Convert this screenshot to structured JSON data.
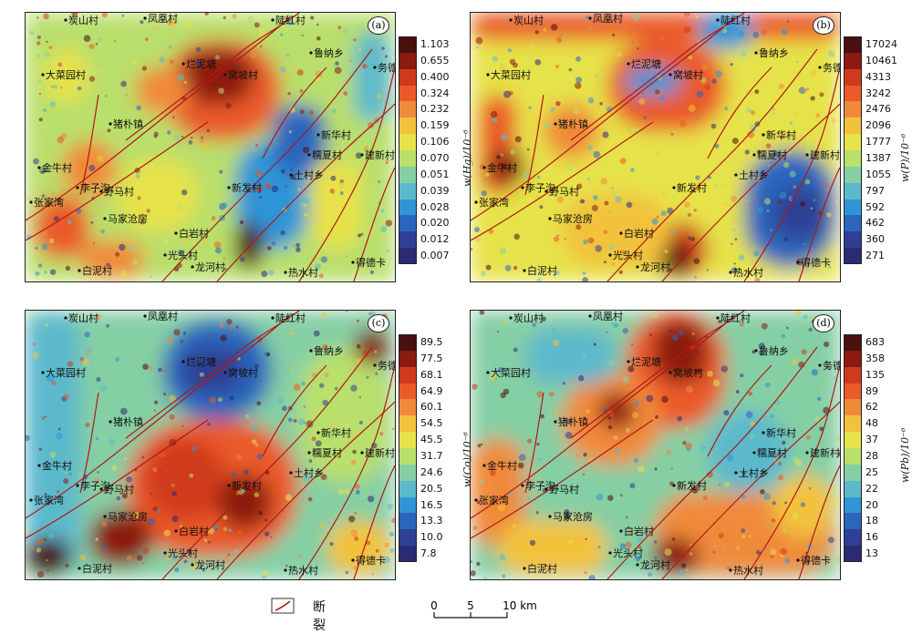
{
  "panels": [
    {
      "letter": "(a)",
      "unit": "w(Hg)/10⁻⁶",
      "legend": [
        "1.103",
        "0.655",
        "0.400",
        "0.324",
        "0.232",
        "0.159",
        "0.106",
        "0.070",
        "0.051",
        "0.039",
        "0.028",
        "0.020",
        "0.012",
        "0.007"
      ]
    },
    {
      "letter": "(b)",
      "unit": "w(P)/10⁻⁶",
      "legend": [
        "17024",
        "10461",
        "4313",
        "3242",
        "2476",
        "2096",
        "1777",
        "1387",
        "1055",
        "797",
        "592",
        "462",
        "360",
        "271"
      ]
    },
    {
      "letter": "(c)",
      "unit": "w(Co)/10⁻⁶",
      "legend": [
        "89.5",
        "77.5",
        "68.1",
        "64.9",
        "60.1",
        "54.5",
        "45.5",
        "31.7",
        "24.6",
        "20.5",
        "16.5",
        "13.3",
        "10.0",
        "7.8"
      ]
    },
    {
      "letter": "(d)",
      "unit": "w(Pb)/10⁻⁶",
      "legend": [
        "683",
        "358",
        "135",
        "89",
        "62",
        "48",
        "37",
        "28",
        "25",
        "22",
        "20",
        "18",
        "16",
        "13"
      ]
    }
  ],
  "color_ramp": [
    "#4a0f0f",
    "#8b1a10",
    "#d03a1c",
    "#ea5a2a",
    "#f08a3a",
    "#f2c23c",
    "#e6e24a",
    "#b9df6c",
    "#85cfa4",
    "#5cb9cc",
    "#2f95d6",
    "#2a66bd",
    "#2e3f94",
    "#2b2a72"
  ],
  "places": [
    "炭山村",
    "凤凰村",
    "陡红村",
    "鲁纳乡",
    "务德乡",
    "大菜园村",
    "烂泥塘",
    "窝坡村",
    "猪朴镇",
    "新华村",
    "糯夏村",
    "建新村",
    "金牛村",
    "李子沟",
    "野马村",
    "新发村",
    "土村乡",
    "张家湾",
    "马家沧房",
    "白岩村",
    "光头村",
    "龙河村",
    "热水村",
    "得德卡",
    "白泥村"
  ],
  "legend_bottom": {
    "fault_label": "断裂"
  },
  "scale_bar": {
    "ticks": [
      "0",
      "5",
      "10 km"
    ]
  }
}
